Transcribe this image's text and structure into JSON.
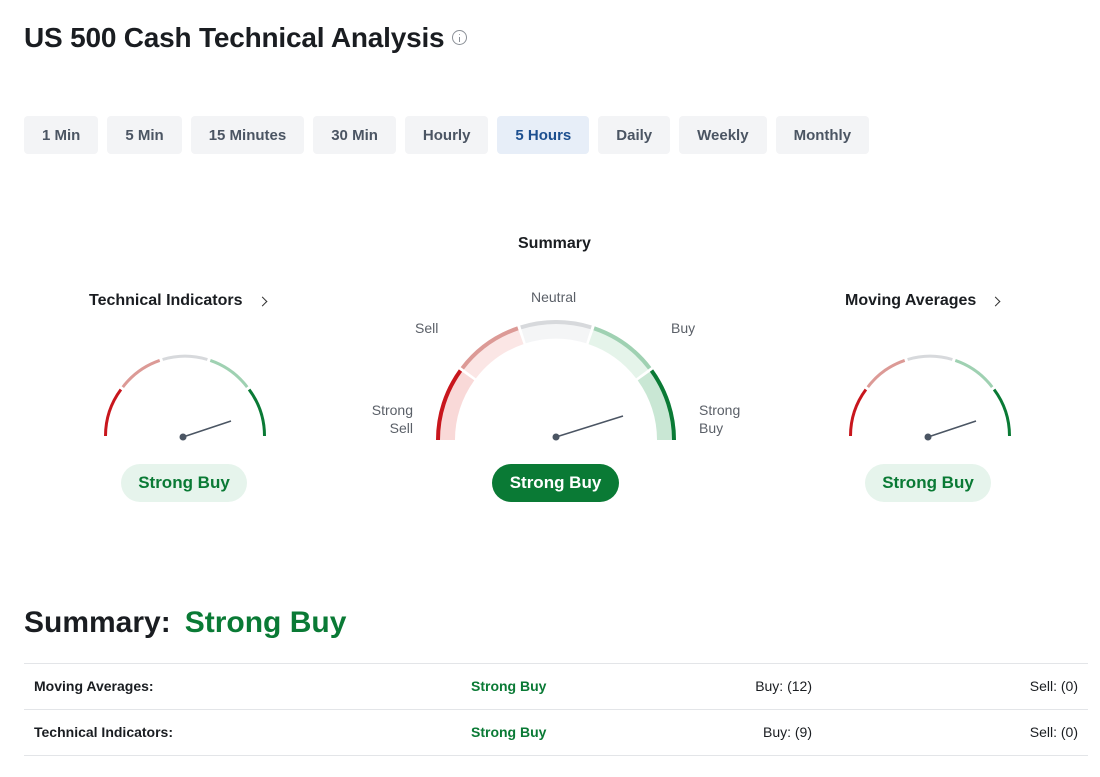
{
  "header": {
    "title": "US 500 Cash Technical Analysis",
    "info_icon": "info-circle-icon"
  },
  "tabs": [
    {
      "label": "1 Min",
      "active": false
    },
    {
      "label": "5 Min",
      "active": false
    },
    {
      "label": "15 Minutes",
      "active": false
    },
    {
      "label": "30 Min",
      "active": false
    },
    {
      "label": "Hourly",
      "active": false
    },
    {
      "label": "5 Hours",
      "active": true
    },
    {
      "label": "Daily",
      "active": false
    },
    {
      "label": "Weekly",
      "active": false
    },
    {
      "label": "Monthly",
      "active": false
    }
  ],
  "gauges": {
    "technical_indicators": {
      "title": "Technical Indicators",
      "result": "Strong Buy",
      "chevron_icon": "chevron-right-icon"
    },
    "summary": {
      "title": "Summary",
      "result": "Strong Buy",
      "labels": {
        "neutral": "Neutral",
        "sell": "Sell",
        "buy": "Buy",
        "strong_sell": "Strong\nSell",
        "strong_buy": "Strong\nBuy"
      }
    },
    "moving_averages": {
      "title": "Moving Averages",
      "result": "Strong Buy",
      "chevron_icon": "chevron-right-icon"
    }
  },
  "colors": {
    "strong_sell": "#c8161d",
    "sell": "#dc9a96",
    "neutral": "#d7d9dc",
    "buy": "#9fd1b2",
    "strong_buy": "#0a7a35",
    "needle": "#4b5563"
  },
  "summary_section": {
    "heading": "Summary:",
    "verdict": "Strong Buy",
    "rows": [
      {
        "name": "Moving Averages:",
        "status": "Strong Buy",
        "buy": "Buy: (12)",
        "sell": "Sell: (0)"
      },
      {
        "name": "Technical Indicators:",
        "status": "Strong Buy",
        "buy": "Buy: (9)",
        "sell": "Sell: (0)"
      }
    ]
  }
}
